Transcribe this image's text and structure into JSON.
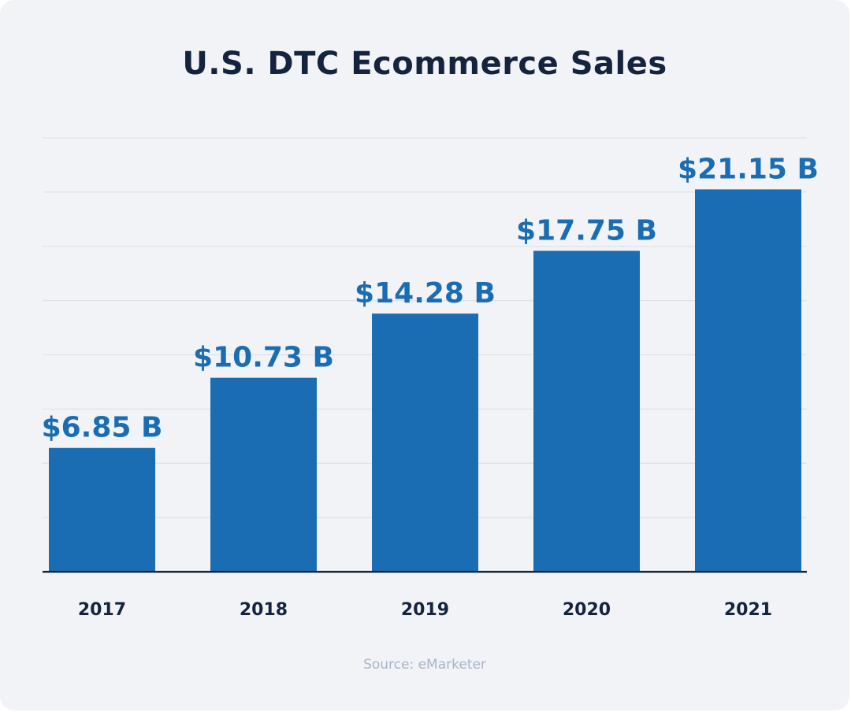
{
  "chart_data": {
    "type": "bar",
    "title": "U.S. DTC Ecommerce Sales",
    "categories": [
      "2017",
      "2018",
      "2019",
      "2020",
      "2021"
    ],
    "values": [
      6.85,
      10.73,
      14.28,
      17.75,
      21.15
    ],
    "data_labels": [
      "$6.85 B",
      "$10.73 B",
      "$14.28 B",
      "$17.75 B",
      "$21.15 B"
    ],
    "xlabel": "",
    "ylabel": "",
    "ylim": [
      0,
      24
    ],
    "grid": true,
    "legend": "none",
    "source": "Source: eMarketer",
    "colors": {
      "bar": "#1b6db3",
      "data_label": "#1b6db3",
      "title": "#14243f",
      "tick_label": "#14243f",
      "grid": "#dde2e9",
      "axis": "#14243f",
      "source": "#a9b5c6",
      "background": "#f1f3f6"
    }
  }
}
